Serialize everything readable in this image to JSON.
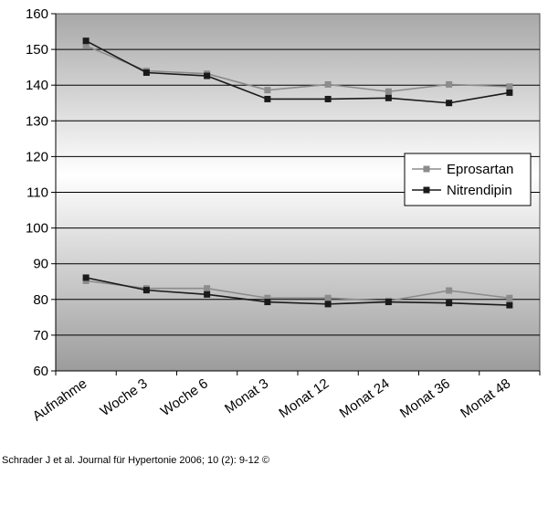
{
  "chart_data": {
    "type": "line",
    "categories": [
      "Aufnahme",
      "Woche 3",
      "Woche 6",
      "Monat 3",
      "Monat 12",
      "Monat 24",
      "Monat 36",
      "Monat 48"
    ],
    "ylim": [
      60,
      160
    ],
    "yticks": [
      60,
      70,
      80,
      90,
      100,
      110,
      120,
      130,
      140,
      150,
      160
    ],
    "grid": true,
    "legend_position": "right-middle",
    "series": [
      {
        "name": "Eprosartan",
        "color": "#8c8c8c",
        "group": "systolic",
        "values": [
          151.0,
          144.0,
          143.2,
          138.6,
          140.2,
          138.2,
          140.2,
          139.6
        ]
      },
      {
        "name": "Nitrendipin",
        "color": "#1a1a1a",
        "group": "systolic",
        "values": [
          152.4,
          143.5,
          142.6,
          136.1,
          136.1,
          136.4,
          135.0,
          137.9
        ]
      },
      {
        "name": "Eprosartan",
        "color": "#8c8c8c",
        "group": "diastolic",
        "values": [
          85.2,
          83.1,
          83.1,
          80.4,
          80.4,
          79.6,
          82.5,
          80.4
        ]
      },
      {
        "name": "Nitrendipin",
        "color": "#1a1a1a",
        "group": "diastolic",
        "values": [
          86.1,
          82.6,
          81.4,
          79.3,
          78.7,
          79.3,
          79.0,
          78.4
        ]
      }
    ],
    "legend": [
      {
        "label": "Eprosartan",
        "color": "#8c8c8c"
      },
      {
        "label": "Nitrendipin",
        "color": "#1a1a1a"
      }
    ]
  },
  "citation": "Schrader J et al. Journal für Hypertonie 2006; 10 (2): 9-12 ©"
}
